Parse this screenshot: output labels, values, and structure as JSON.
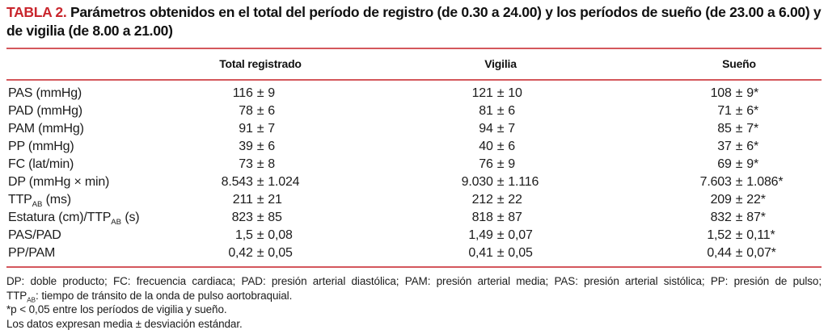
{
  "title": {
    "label": "TABLA 2.",
    "text": "Parámetros obtenidos en el total del período de registro (de 0.30 a 24.00) y los períodos de sueño (de 23.00 a 6.00) y de vigilia (de 8.00 a 21.00)"
  },
  "table": {
    "columns": [
      "",
      "Total registrado",
      "Vigilia",
      "Sueño"
    ],
    "rows": [
      {
        "label": "PAS (mmHg)",
        "total": "116 ± 9",
        "vigilia": "121 ± 10",
        "sueno": "108 ± 9*"
      },
      {
        "label": "PAD (mmHg)",
        "total": "78 ± 6",
        "vigilia": "81 ± 6",
        "sueno": "71 ± 6*"
      },
      {
        "label": "PAM (mmHg)",
        "total": "91 ± 7",
        "vigilia": "94 ± 7",
        "sueno": "85 ± 7*"
      },
      {
        "label": "PP (mmHg)",
        "total": "39 ± 6",
        "vigilia": "40 ± 6",
        "sueno": "37 ± 6*"
      },
      {
        "label": "FC (lat/min)",
        "total": "73 ± 8",
        "vigilia": "76 ± 9",
        "sueno": "69 ± 9*"
      },
      {
        "label": "DP (mmHg × min)",
        "total": "8.543 ± 1.024",
        "vigilia": "9.030 ± 1.116",
        "sueno": "7.603 ± 1.086*"
      },
      {
        "label": "TTP[AB] (ms)",
        "total": "211 ± 21",
        "vigilia": "212 ± 22",
        "sueno": "209 ± 22*"
      },
      {
        "label": "Estatura (cm)/TTP[AB] (s)",
        "total": "823 ± 85",
        "vigilia": "818 ± 87",
        "sueno": "832 ± 87*"
      },
      {
        "label": "PAS/PAD",
        "total": "1,5 ± 0,08",
        "vigilia": "1,49 ± 0,07",
        "sueno": "1,52 ± 0,11*"
      },
      {
        "label": "PP/PAM",
        "total": "0,42 ± 0,05",
        "vigilia": "0,41 ± 0,05",
        "sueno": "0,44 ± 0,07*"
      }
    ]
  },
  "footnotes": [
    {
      "text": "DP: doble producto; FC: frecuencia cardiaca; PAD: presión arterial diastólica; PAM: presión arterial media; PAS: presión arterial sistólica; PP: presión de pulso;",
      "justify": true
    },
    {
      "text": "TTP[AB]: tiempo de tránsito de la onda de pulso aortobraquial.",
      "justify": false
    },
    {
      "text": "*p < 0,05 entre los períodos de vigilia y sueño.",
      "justify": false
    },
    {
      "text": "Los datos expresan media ± desviación estándar.",
      "justify": false
    }
  ],
  "colors": {
    "title_red": "#c9262d",
    "rule_red": "#d4575c"
  }
}
